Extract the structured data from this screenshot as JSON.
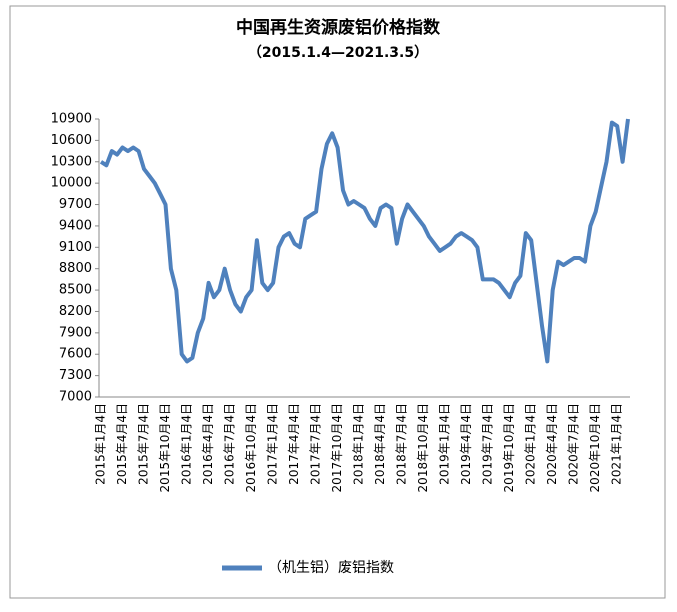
{
  "chart_data": {
    "type": "line",
    "title": "中国再生资源废铝价格指数",
    "subtitle": "（2015.1.4—2021.3.5）",
    "categories": [
      "2015年1月4日",
      null,
      null,
      null,
      "2015年4月4日",
      null,
      null,
      null,
      "2015年7月4日",
      null,
      null,
      null,
      "2015年10月4日",
      null,
      null,
      null,
      "2016年1月4日",
      null,
      null,
      null,
      "2016年4月4日",
      null,
      null,
      null,
      "2016年7月4日",
      null,
      null,
      null,
      "2016年10月4日",
      null,
      null,
      null,
      "2017年1月4日",
      null,
      null,
      null,
      "2017年4月4日",
      null,
      null,
      null,
      "2017年7月4日",
      null,
      null,
      null,
      "2017年10月4日",
      null,
      null,
      null,
      "2018年1月4日",
      null,
      null,
      null,
      "2018年4月4日",
      null,
      null,
      null,
      "2018年7月4日",
      null,
      null,
      null,
      "2018年10月4日",
      null,
      null,
      null,
      "2019年1月4日",
      null,
      null,
      null,
      "2019年4月4日",
      null,
      null,
      null,
      "2019年7月4日",
      null,
      null,
      null,
      "2019年10月4日",
      null,
      null,
      null,
      "2020年1月4日",
      null,
      null,
      null,
      "2020年4月4日",
      null,
      null,
      null,
      "2020年7月4日",
      null,
      null,
      null,
      "2020年10月4日",
      null,
      null,
      null,
      "2021年1月4日",
      null,
      null
    ],
    "series": [
      {
        "name": "（机生铝）废铝指数",
        "color": "#4f81bd",
        "values": [
          10300,
          10250,
          10450,
          10400,
          10500,
          10450,
          10500,
          10450,
          10200,
          10100,
          10000,
          9850,
          9700,
          8800,
          8500,
          7600,
          7500,
          7550,
          7900,
          8100,
          8600,
          8400,
          8500,
          8800,
          8500,
          8300,
          8200,
          8400,
          8500,
          9200,
          8600,
          8500,
          8600,
          9100,
          9250,
          9300,
          9150,
          9100,
          9500,
          9550,
          9600,
          10200,
          10550,
          10700,
          10500,
          9900,
          9700,
          9750,
          9700,
          9650,
          9500,
          9400,
          9650,
          9700,
          9650,
          9150,
          9500,
          9700,
          9600,
          9500,
          9400,
          9250,
          9150,
          9050,
          9100,
          9150,
          9250,
          9300,
          9250,
          9200,
          9100,
          8650,
          8650,
          8650,
          8600,
          8500,
          8400,
          8600,
          8700,
          9300,
          9200,
          8600,
          8000,
          7500,
          8500,
          8900,
          8850,
          8900,
          8950,
          8950,
          8900,
          9400,
          9600,
          9950,
          10300,
          10850,
          10800,
          10300,
          10900
        ]
      }
    ],
    "ylim": [
      7000,
      10900
    ],
    "yticks": [
      7000,
      7300,
      7600,
      7900,
      8200,
      8500,
      8800,
      9100,
      9400,
      9700,
      10000,
      10300,
      10600,
      10900
    ],
    "grid": false,
    "legend": "bottom"
  }
}
